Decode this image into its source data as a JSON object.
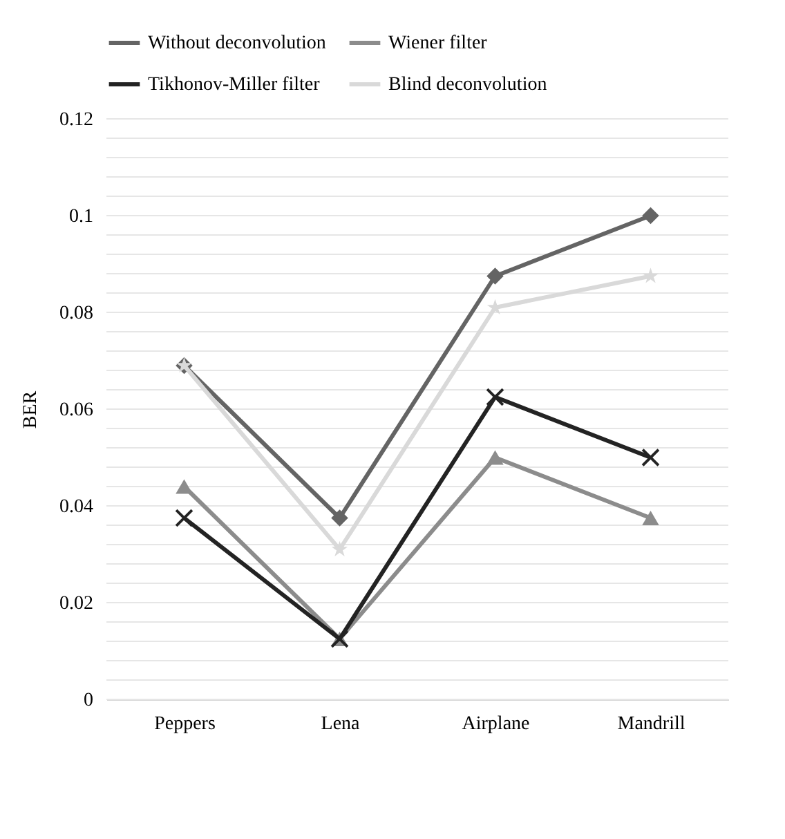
{
  "chart_data": {
    "type": "line",
    "ylabel": "BER",
    "categories": [
      "Peppers",
      "Lena",
      "Airplane",
      "Mandrill"
    ],
    "series": [
      {
        "name": "Without deconvolution",
        "color": "#646464",
        "marker": "diamond",
        "values": [
          0.069,
          0.0375,
          0.0875,
          0.1
        ]
      },
      {
        "name": "Wiener filter",
        "color": "#8c8c8c",
        "marker": "triangle",
        "values": [
          0.044,
          0.0125,
          0.05,
          0.0375
        ]
      },
      {
        "name": "Tikhonov-Miller filter",
        "color": "#232323",
        "marker": "cross",
        "values": [
          0.0375,
          0.0125,
          0.0625,
          0.05
        ]
      },
      {
        "name": "Blind deconvolution",
        "color": "#d9d9d9",
        "marker": "star",
        "values": [
          0.069,
          0.031,
          0.081,
          0.0875
        ]
      }
    ],
    "ylim": [
      0,
      0.12
    ],
    "yticks": [
      0,
      {
        "value": 0.004,
        "label": null
      },
      {
        "value": 0.008,
        "label": null
      },
      {
        "value": 0.012,
        "label": null
      },
      {
        "value": 0.016,
        "label": null
      },
      0.02,
      {
        "value": 0.024,
        "label": null
      },
      {
        "value": 0.028,
        "label": null
      },
      {
        "value": 0.032,
        "label": null
      },
      {
        "value": 0.036,
        "label": null
      },
      0.04,
      {
        "value": 0.044,
        "label": null
      },
      {
        "value": 0.048,
        "label": null
      },
      {
        "value": 0.052,
        "label": null
      },
      {
        "value": 0.056,
        "label": null
      },
      0.06,
      {
        "value": 0.064,
        "label": null
      },
      {
        "value": 0.068,
        "label": null
      },
      {
        "value": 0.072,
        "label": null
      },
      {
        "value": 0.076,
        "label": null
      },
      0.08,
      {
        "value": 0.084,
        "label": null
      },
      {
        "value": 0.088,
        "label": null
      },
      {
        "value": 0.092,
        "label": null
      },
      {
        "value": 0.096,
        "label": null
      },
      0.1,
      {
        "value": 0.104,
        "label": null
      },
      {
        "value": 0.108,
        "label": null
      },
      {
        "value": 0.112,
        "label": null
      },
      {
        "value": 0.116,
        "label": null
      },
      0.12
    ],
    "grid": "y",
    "legend": "top",
    "line_style": "solid"
  }
}
